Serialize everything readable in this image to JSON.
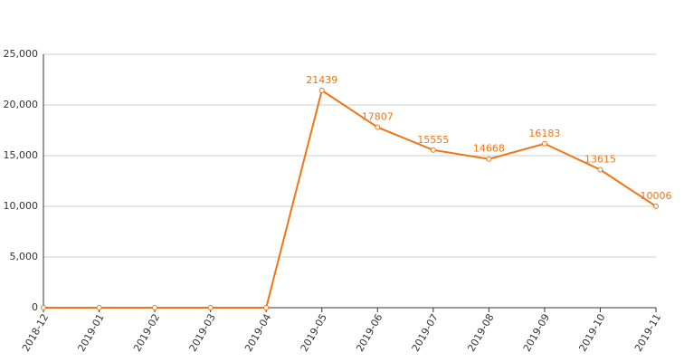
{
  "chart_data": {
    "type": "line",
    "x": [
      "2018-12",
      "2019-01",
      "2019-02",
      "2019-03",
      "2019-04",
      "2019-05",
      "2019-06",
      "2019-07",
      "2019-08",
      "2019-09",
      "2019-10",
      "2019-11"
    ],
    "series": [
      {
        "color": "#f07515",
        "values": [
          0,
          0,
          0,
          0,
          0,
          21439,
          17807,
          15555,
          14668,
          16183,
          13615,
          10006
        ]
      }
    ],
    "ylim": [
      0,
      25000
    ],
    "yticks": [
      0,
      {
        "value": 5000,
        "label": "5,000"
      },
      {
        "value": 10000,
        "label": "10,000"
      },
      {
        "value": 15000,
        "label": "15,000"
      },
      {
        "value": 20000,
        "label": "20,000"
      },
      {
        "value": 25000,
        "label": "25,000"
      }
    ],
    "grid": true
  }
}
